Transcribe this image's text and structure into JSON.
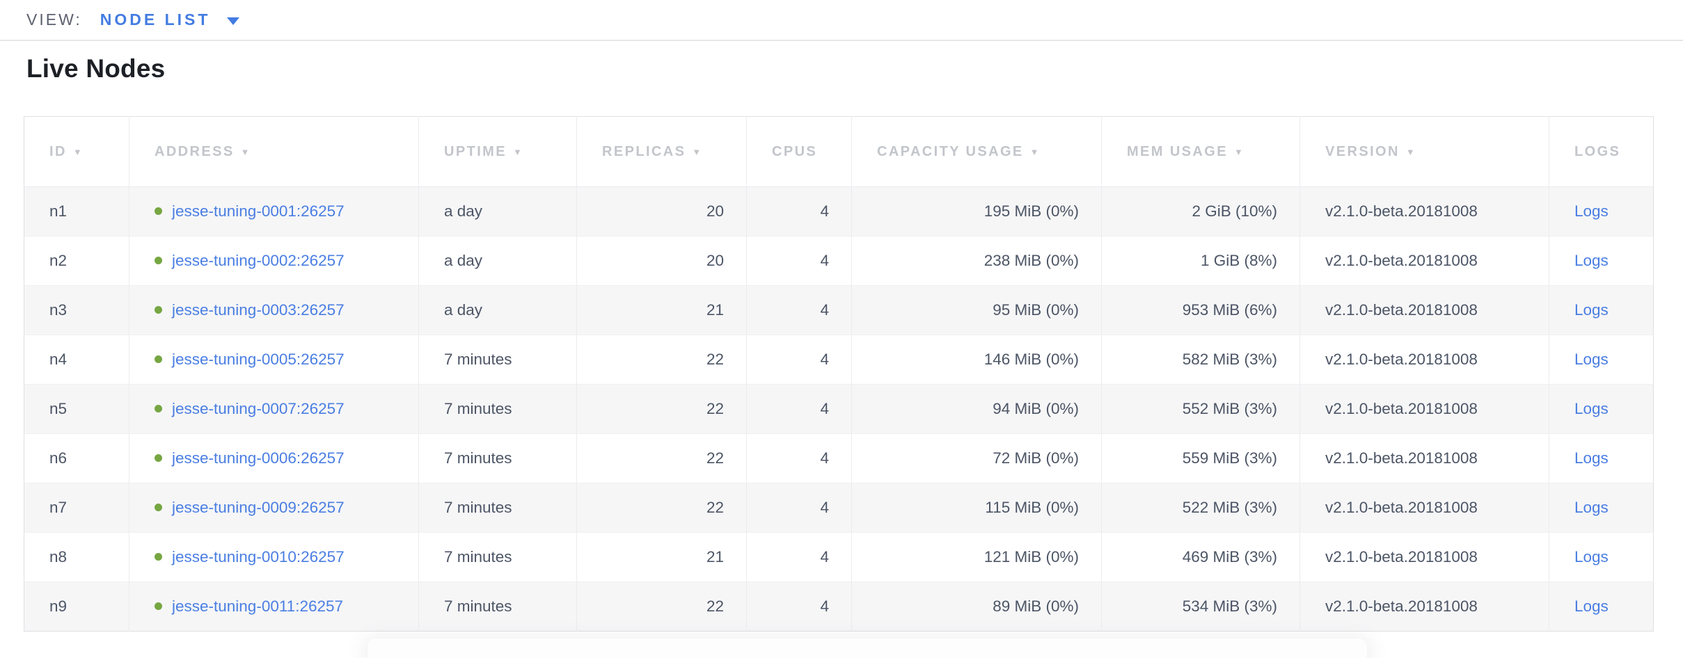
{
  "view_bar": {
    "label": "VIEW:",
    "selected": "NODE LIST"
  },
  "page": {
    "title": "Live Nodes"
  },
  "icons": {
    "sort_desc": "▼",
    "dropdown_caret": "caret-down",
    "node_status_dot": "filled-circle"
  },
  "colors": {
    "accent_blue": "#437ce2",
    "link_blue": "#4a7ee2",
    "live_green": "#76a642",
    "header_gray": "#c2c5ca",
    "text_slate": "#4c5565",
    "row_stripe": "#f6f6f7"
  },
  "table": {
    "columns": [
      {
        "key": "id",
        "label": "ID",
        "sortable": true
      },
      {
        "key": "address",
        "label": "ADDRESS",
        "sortable": true
      },
      {
        "key": "uptime",
        "label": "UPTIME",
        "sortable": true
      },
      {
        "key": "replicas",
        "label": "REPLICAS",
        "sortable": true
      },
      {
        "key": "cpus",
        "label": "CPUS",
        "sortable": false
      },
      {
        "key": "capacity",
        "label": "CAPACITY USAGE",
        "sortable": true
      },
      {
        "key": "mem",
        "label": "MEM USAGE",
        "sortable": true
      },
      {
        "key": "version",
        "label": "VERSION",
        "sortable": true
      },
      {
        "key": "logs",
        "label": "LOGS",
        "sortable": false
      }
    ],
    "rows": [
      {
        "id": "n1",
        "address": "jesse-tuning-0001:26257",
        "uptime": "a day",
        "replicas": "20",
        "cpus": "4",
        "capacity": "195 MiB (0%)",
        "mem": "2 GiB (10%)",
        "version": "v2.1.0-beta.20181008",
        "logs": "Logs"
      },
      {
        "id": "n2",
        "address": "jesse-tuning-0002:26257",
        "uptime": "a day",
        "replicas": "20",
        "cpus": "4",
        "capacity": "238 MiB (0%)",
        "mem": "1 GiB (8%)",
        "version": "v2.1.0-beta.20181008",
        "logs": "Logs"
      },
      {
        "id": "n3",
        "address": "jesse-tuning-0003:26257",
        "uptime": "a day",
        "replicas": "21",
        "cpus": "4",
        "capacity": "95 MiB (0%)",
        "mem": "953 MiB (6%)",
        "version": "v2.1.0-beta.20181008",
        "logs": "Logs"
      },
      {
        "id": "n4",
        "address": "jesse-tuning-0005:26257",
        "uptime": "7 minutes",
        "replicas": "22",
        "cpus": "4",
        "capacity": "146 MiB (0%)",
        "mem": "582 MiB (3%)",
        "version": "v2.1.0-beta.20181008",
        "logs": "Logs"
      },
      {
        "id": "n5",
        "address": "jesse-tuning-0007:26257",
        "uptime": "7 minutes",
        "replicas": "22",
        "cpus": "4",
        "capacity": "94 MiB (0%)",
        "mem": "552 MiB (3%)",
        "version": "v2.1.0-beta.20181008",
        "logs": "Logs"
      },
      {
        "id": "n6",
        "address": "jesse-tuning-0006:26257",
        "uptime": "7 minutes",
        "replicas": "22",
        "cpus": "4",
        "capacity": "72 MiB (0%)",
        "mem": "559 MiB (3%)",
        "version": "v2.1.0-beta.20181008",
        "logs": "Logs"
      },
      {
        "id": "n7",
        "address": "jesse-tuning-0009:26257",
        "uptime": "7 minutes",
        "replicas": "22",
        "cpus": "4",
        "capacity": "115 MiB (0%)",
        "mem": "522 MiB (3%)",
        "version": "v2.1.0-beta.20181008",
        "logs": "Logs"
      },
      {
        "id": "n8",
        "address": "jesse-tuning-0010:26257",
        "uptime": "7 minutes",
        "replicas": "21",
        "cpus": "4",
        "capacity": "121 MiB (0%)",
        "mem": "469 MiB (3%)",
        "version": "v2.1.0-beta.20181008",
        "logs": "Logs"
      },
      {
        "id": "n9",
        "address": "jesse-tuning-0011:26257",
        "uptime": "7 minutes",
        "replicas": "22",
        "cpus": "4",
        "capacity": "89 MiB (0%)",
        "mem": "534 MiB (3%)",
        "version": "v2.1.0-beta.20181008",
        "logs": "Logs"
      }
    ]
  }
}
